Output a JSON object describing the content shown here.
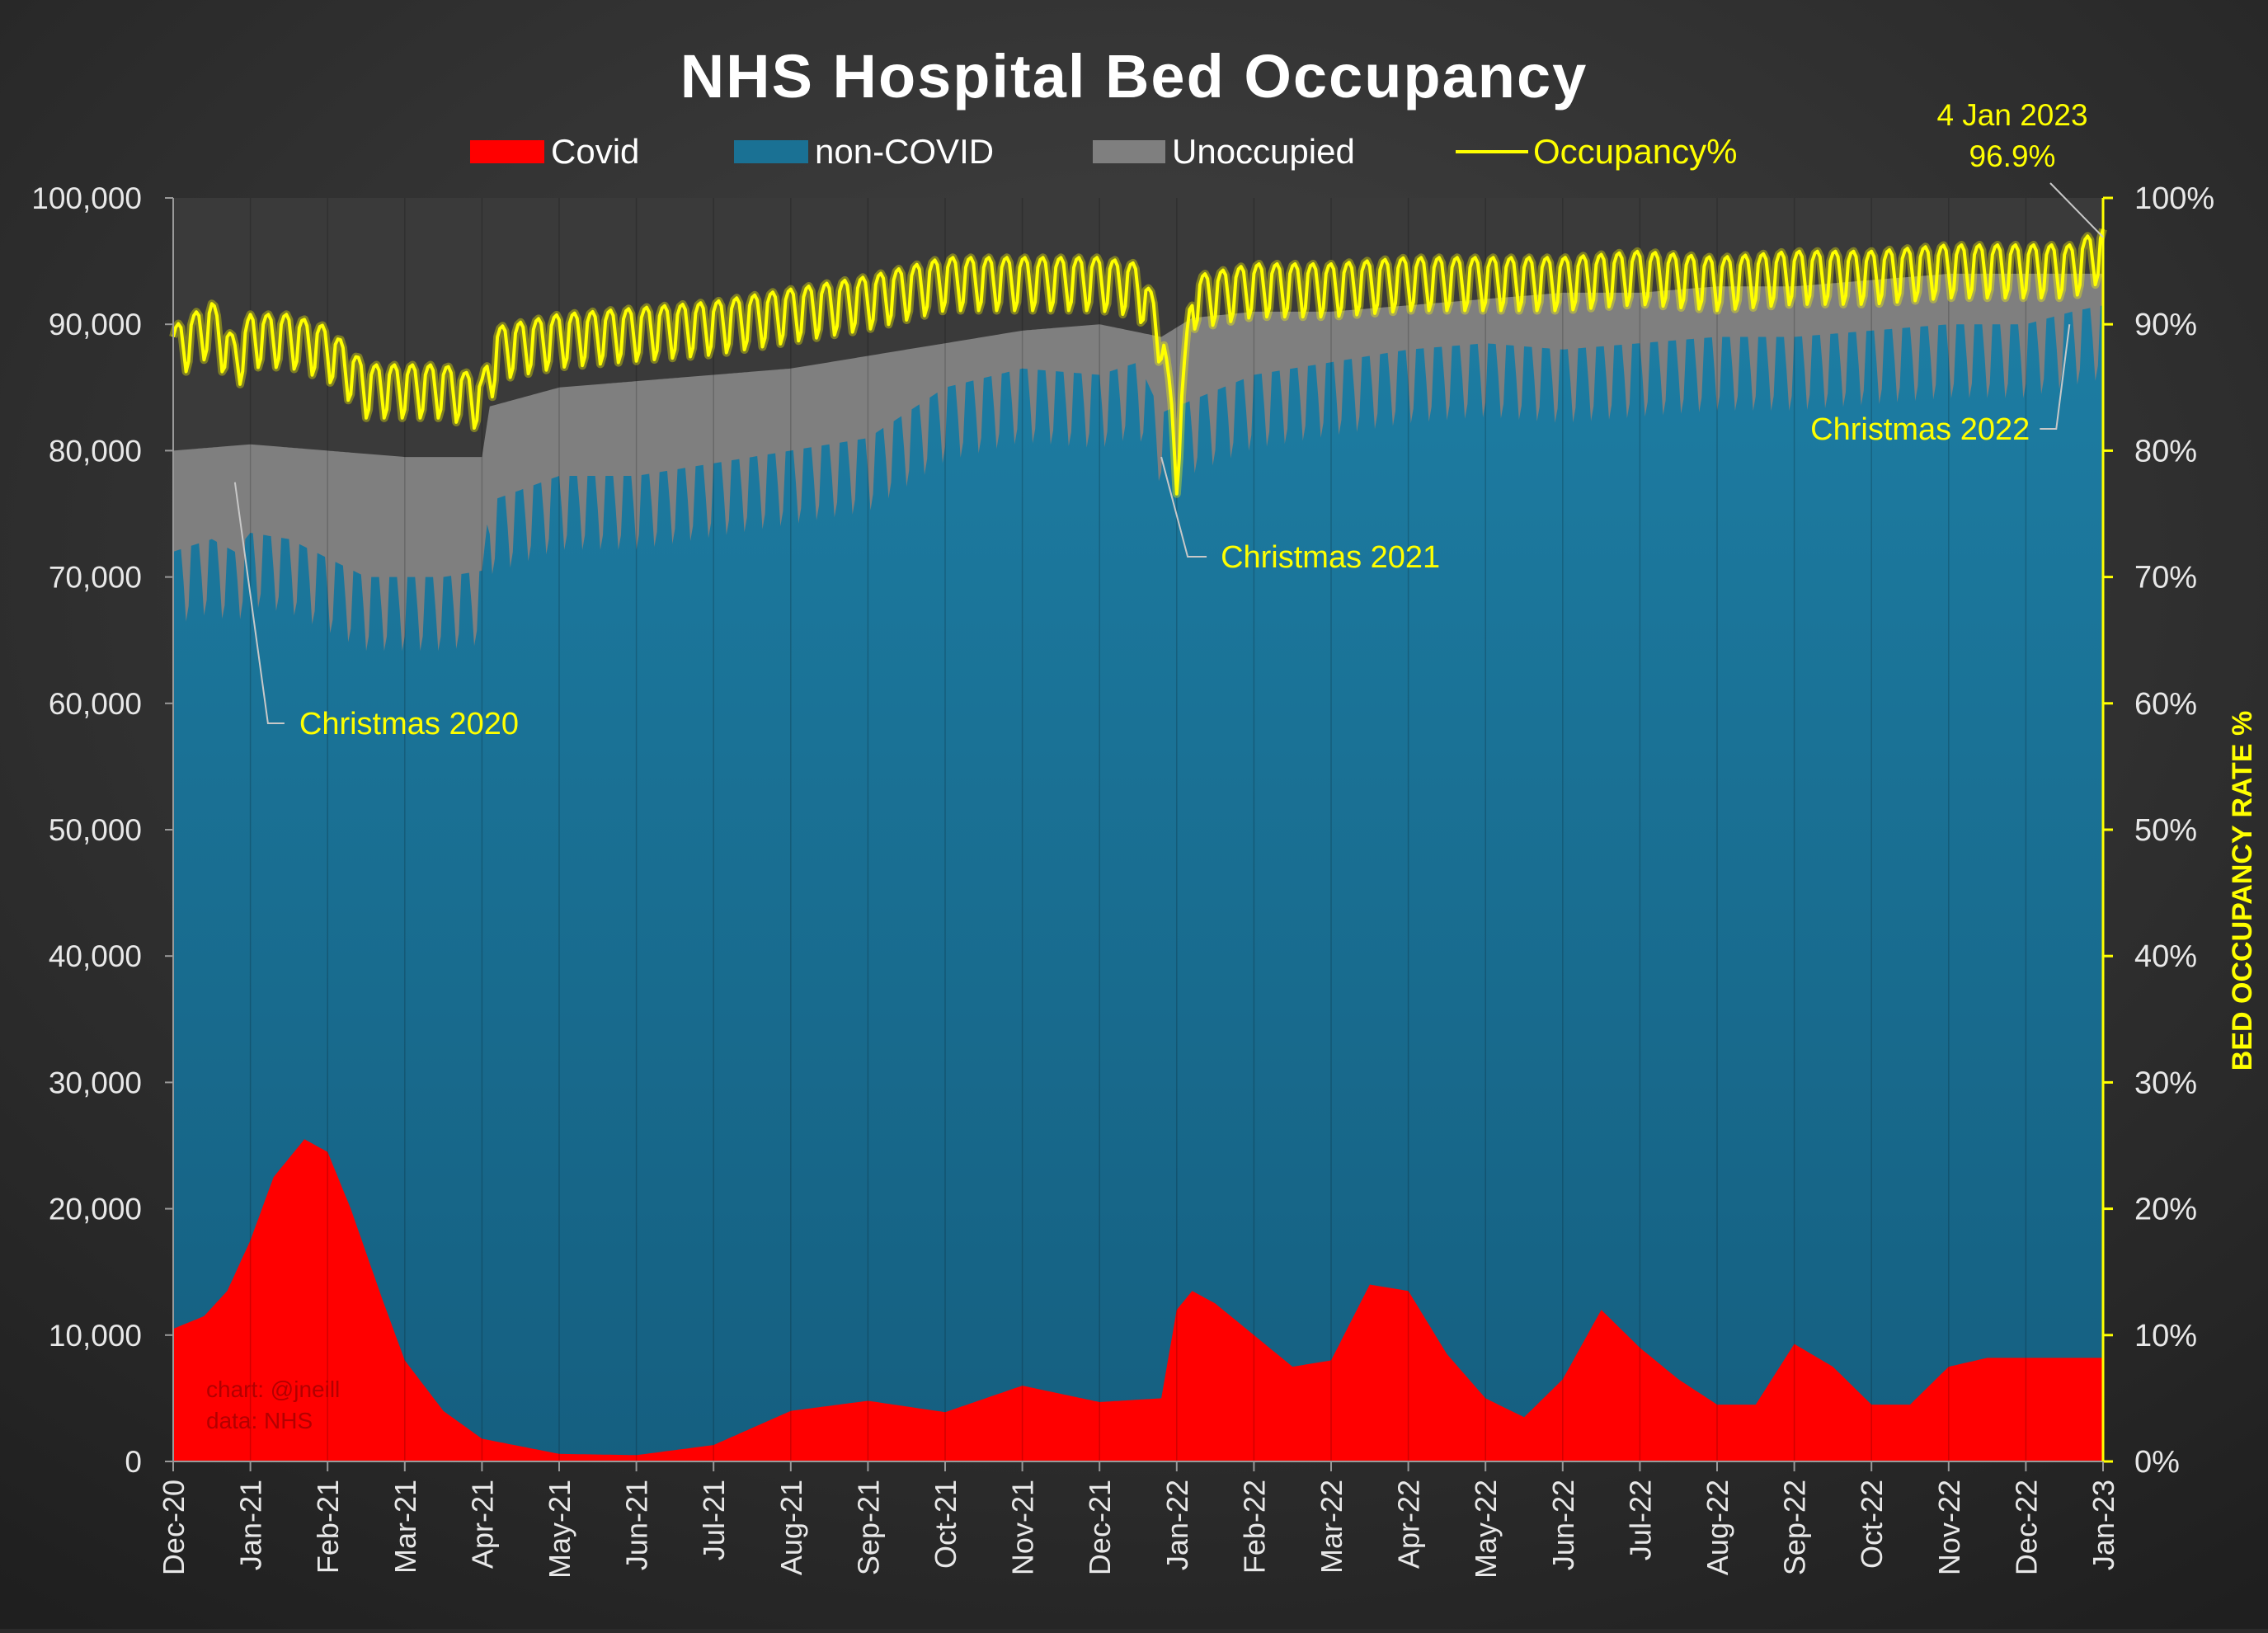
{
  "chart_data": {
    "type": "area",
    "title": "NHS Hospital Bed Occupancy",
    "legend": [
      {
        "label": "Covid",
        "color": "#ff0000",
        "kind": "area"
      },
      {
        "label": "non-COVID",
        "color": "#1a7194",
        "kind": "area"
      },
      {
        "label": "Unoccupied",
        "color": "#7f7f7f",
        "kind": "area"
      },
      {
        "label": "Occupancy%",
        "color": "#ffff00",
        "kind": "line"
      }
    ],
    "legend_position": "top",
    "y_left": {
      "min": 0,
      "max": 100000,
      "ticks": [
        "0",
        "10,000",
        "20,000",
        "30,000",
        "40,000",
        "50,000",
        "60,000",
        "70,000",
        "80,000",
        "90,000",
        "100,000"
      ]
    },
    "y_right": {
      "min": 0,
      "max": 100,
      "label": "BED OCCUPANCY RATE %",
      "ticks": [
        "0%",
        "10%",
        "20%",
        "30%",
        "40%",
        "50%",
        "60%",
        "70%",
        "80%",
        "90%",
        "100%"
      ]
    },
    "x_ticks": [
      "Dec-20",
      "Jan-21",
      "Feb-21",
      "Mar-21",
      "Apr-21",
      "May-21",
      "Jun-21",
      "Jul-21",
      "Aug-21",
      "Sep-21",
      "Oct-21",
      "Nov-21",
      "Dec-21",
      "Jan-22",
      "Feb-22",
      "Mar-22",
      "Apr-22",
      "May-22",
      "Jun-22",
      "Jul-22",
      "Aug-22",
      "Sep-22",
      "Oct-22",
      "Nov-22",
      "Dec-22",
      "Jan-23"
    ],
    "covid_beds": {
      "months": [
        0,
        0.4,
        0.7,
        1.0,
        1.3,
        1.7,
        2.0,
        2.3,
        2.7,
        3.0,
        3.5,
        4.0,
        5.0,
        6.0,
        7.0,
        8.0,
        9.0,
        10.0,
        11.0,
        12.0,
        12.8,
        13.0,
        13.2,
        13.5,
        14.0,
        14.5,
        15.0,
        15.5,
        16.0,
        16.5,
        17.0,
        17.5,
        18.0,
        18.5,
        19.0,
        19.5,
        20.0,
        20.5,
        21.0,
        21.5,
        22.0,
        22.5,
        23.0,
        23.5,
        24.0,
        24.5,
        25.0
      ],
      "values": [
        10500,
        11500,
        13500,
        17500,
        22500,
        25500,
        24500,
        20000,
        13000,
        8000,
        4000,
        1800,
        600,
        500,
        1300,
        4000,
        4800,
        3900,
        6000,
        4700,
        5000,
        12000,
        13500,
        12500,
        10000,
        7500,
        8000,
        14000,
        13500,
        8500,
        5000,
        3500,
        6500,
        12000,
        9000,
        6500,
        4500,
        4500,
        9300,
        7500,
        4500,
        4500,
        7500,
        8200,
        8200,
        8200,
        8200
      ]
    },
    "total_occupied_beds_weekly_peak": {
      "months": [
        0,
        0.5,
        0.8,
        1.0,
        1.5,
        2.0,
        2.5,
        3.0,
        3.5,
        4.0,
        4.1,
        5.0,
        6.0,
        7.0,
        8.0,
        9.0,
        10.0,
        11.0,
        12.0,
        12.5,
        12.8,
        13.2,
        14.0,
        15.0,
        16.0,
        17.0,
        18.0,
        19.0,
        20.0,
        21.0,
        22.0,
        23.0,
        24.0,
        24.6,
        25.0
      ],
      "values": [
        72000,
        73000,
        72000,
        73500,
        73000,
        71500,
        70000,
        70000,
        70000,
        70500,
        76000,
        78000,
        78000,
        79000,
        80000,
        81000,
        85000,
        86500,
        86000,
        87000,
        83000,
        84000,
        86000,
        87000,
        88000,
        88500,
        88000,
        88500,
        89000,
        89000,
        89500,
        90000,
        90000,
        91000,
        91500
      ]
    },
    "total_beds": {
      "months": [
        0,
        1.0,
        2.0,
        3.0,
        4.0,
        4.1,
        5.0,
        6.0,
        7.0,
        8.0,
        9.0,
        10.0,
        11.0,
        12.0,
        12.8,
        13.2,
        14.0,
        15.0,
        16.0,
        17.0,
        18.0,
        19.0,
        20.0,
        21.0,
        22.0,
        23.0,
        24.0,
        25.0
      ],
      "values": [
        80000,
        80500,
        80000,
        79500,
        79500,
        83500,
        85000,
        85500,
        86000,
        86500,
        87500,
        88500,
        89500,
        90000,
        89000,
        90500,
        91000,
        91000,
        91500,
        92000,
        92500,
        92500,
        93000,
        93000,
        93500,
        94000,
        94000,
        94000
      ]
    },
    "occupancy_pct": {
      "months": [
        0,
        0.5,
        0.8,
        1.0,
        1.5,
        2.0,
        2.5,
        3.0,
        3.5,
        4.0,
        4.2,
        5.0,
        6.0,
        7.0,
        8.0,
        9.0,
        10.0,
        11.0,
        12.0,
        12.5,
        12.8,
        13.0,
        13.2,
        14.0,
        15.0,
        16.0,
        17.0,
        18.0,
        19.0,
        20.0,
        21.0,
        22.0,
        23.0,
        24.0,
        24.6,
        25.0
      ],
      "values": [
        89,
        91,
        88,
        90,
        90,
        89,
        86,
        86,
        86,
        85,
        89,
        90,
        90.5,
        91,
        92,
        93,
        94.5,
        94.5,
        94.5,
        94,
        90,
        80,
        93,
        94,
        94,
        94.5,
        94.5,
        94.5,
        95,
        94.5,
        95,
        95,
        95.5,
        95.5,
        95.5,
        96.9
      ]
    },
    "annotations": [
      {
        "text": "Christmas 2020",
        "month": 0.8,
        "value_pct": 77.5
      },
      {
        "text": "Christmas 2021",
        "month": 12.8,
        "value_pct": 79.5
      },
      {
        "text": "Christmas 2022",
        "month": 24.8,
        "value_pct": 90
      },
      {
        "text": "4 Jan 2023",
        "text2": "96.9%",
        "month": 25.0,
        "value_pct": 96.9
      }
    ],
    "credit": {
      "line1": "chart: @jneill",
      "line2": "data: NHS"
    }
  }
}
